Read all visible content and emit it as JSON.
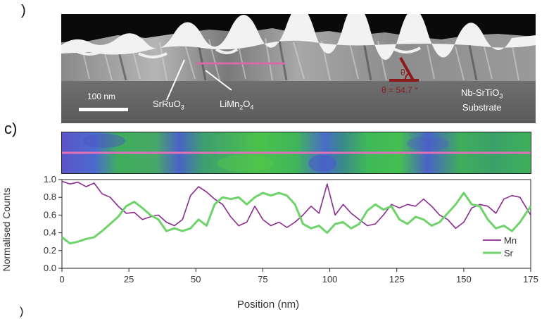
{
  "panels": {
    "top_label": ")",
    "middle_label": "c)",
    "bottom_label": ")"
  },
  "micrograph": {
    "scale_bar": "100 nm",
    "label_srruo3": "SrRuO",
    "label_srruo3_sub": "3",
    "label_limn2o4_a": "LiMn",
    "label_limn2o4_sub1": "2",
    "label_limn2o4_b": "O",
    "label_limn2o4_sub2": "4",
    "theta_symbol": "θ",
    "theta_text": "θ = 54.7 °",
    "substrate_line1_a": "Nb-SrTiO",
    "substrate_line1_sub": "3",
    "substrate_line2": "Substrate",
    "colors": {
      "line_scan": "#d96aa7",
      "theta": "#8b1a1a"
    }
  },
  "map": {
    "colors": {
      "green": "#3fbf4f",
      "blue": "#4b5bc8",
      "line_scan": "#e070b8"
    }
  },
  "chart_data": {
    "type": "line",
    "xlabel": "Position (nm)",
    "ylabel": "Normalised Counts",
    "xlim": [
      0,
      175
    ],
    "ylim": [
      0,
      1.0
    ],
    "xticks": [
      "0",
      "25",
      "50",
      "75",
      "100",
      "125",
      "150",
      "175"
    ],
    "yticks": [
      "0.0",
      "0.2",
      "0.4",
      "0.6",
      "0.8",
      "1.0"
    ],
    "legend_position": "bottom-right",
    "series": [
      {
        "name": "Mn",
        "color": "#8b2a8e",
        "x": [
          0,
          3,
          6,
          9,
          12,
          15,
          18,
          21,
          24,
          27,
          30,
          33,
          36,
          39,
          42,
          45,
          48,
          51,
          54,
          57,
          60,
          63,
          66,
          69,
          72,
          75,
          78,
          81,
          84,
          87,
          90,
          93,
          96,
          99,
          102,
          105,
          108,
          111,
          114,
          117,
          120,
          123,
          126,
          129,
          132,
          135,
          138,
          141,
          144,
          147,
          150,
          153,
          156,
          159,
          162,
          165,
          168,
          171,
          175
        ],
        "y": [
          0.98,
          0.95,
          0.97,
          0.92,
          0.96,
          0.84,
          0.8,
          0.7,
          0.62,
          0.63,
          0.55,
          0.58,
          0.6,
          0.52,
          0.48,
          0.55,
          0.82,
          0.92,
          0.86,
          0.78,
          0.72,
          0.58,
          0.48,
          0.52,
          0.7,
          0.55,
          0.48,
          0.52,
          0.46,
          0.52,
          0.6,
          0.7,
          0.62,
          0.95,
          0.6,
          0.72,
          0.62,
          0.55,
          0.48,
          0.5,
          0.6,
          0.72,
          0.68,
          0.72,
          0.7,
          0.78,
          0.7,
          0.6,
          0.55,
          0.45,
          0.52,
          0.68,
          0.72,
          0.7,
          0.62,
          0.78,
          0.82,
          0.8,
          0.6
        ]
      },
      {
        "name": "Sr",
        "color": "#6ed36a",
        "x": [
          0,
          3,
          6,
          9,
          12,
          15,
          18,
          21,
          24,
          27,
          30,
          33,
          36,
          39,
          42,
          45,
          48,
          51,
          54,
          57,
          60,
          63,
          66,
          69,
          72,
          75,
          78,
          81,
          84,
          87,
          90,
          93,
          96,
          99,
          102,
          105,
          108,
          111,
          114,
          117,
          120,
          123,
          126,
          129,
          132,
          135,
          138,
          141,
          144,
          147,
          150,
          153,
          156,
          159,
          162,
          165,
          168,
          171,
          175
        ],
        "y": [
          0.35,
          0.28,
          0.3,
          0.33,
          0.35,
          0.42,
          0.5,
          0.58,
          0.7,
          0.75,
          0.68,
          0.6,
          0.55,
          0.42,
          0.45,
          0.42,
          0.45,
          0.55,
          0.48,
          0.72,
          0.8,
          0.78,
          0.8,
          0.72,
          0.8,
          0.85,
          0.82,
          0.85,
          0.82,
          0.72,
          0.5,
          0.45,
          0.48,
          0.4,
          0.5,
          0.52,
          0.45,
          0.5,
          0.65,
          0.72,
          0.66,
          0.7,
          0.55,
          0.5,
          0.58,
          0.55,
          0.48,
          0.52,
          0.62,
          0.72,
          0.85,
          0.72,
          0.7,
          0.55,
          0.45,
          0.48,
          0.42,
          0.52,
          0.7
        ]
      }
    ]
  }
}
